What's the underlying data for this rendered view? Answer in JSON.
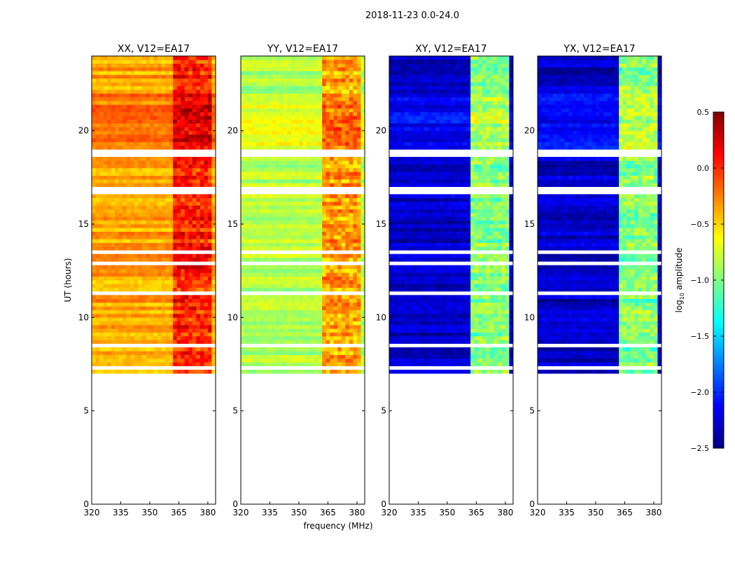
{
  "chart_data": {
    "type": "heatmap",
    "title": "2018-11-23 0.0-24.0",
    "xlabel": "frequency (MHz)",
    "ylabel": "UT (hours)",
    "xlim": [
      320,
      384
    ],
    "ylim": [
      0,
      24
    ],
    "xticks": [
      320,
      335,
      350,
      365,
      380
    ],
    "yticks": [
      0,
      5,
      10,
      15,
      20
    ],
    "colormap": "jet",
    "colorbar": {
      "label": "log10 amplitude",
      "label_main": "log",
      "label_sub": "10",
      "label_rest": " amplitude",
      "range": [
        -2.5,
        0.5
      ],
      "ticks": [
        "0.5",
        "0.0",
        "−0.5",
        "−1.0",
        "−1.5",
        "−2.0",
        "−2.5"
      ],
      "tick_values": [
        0.5,
        0,
        -0.5,
        -1,
        -1.5,
        -2,
        -2.5
      ]
    },
    "data_hours": [
      [
        0,
        0.1
      ],
      [
        7.1,
        24
      ]
    ],
    "flagged_hours": [
      [
        7.25,
        7.35
      ],
      [
        7.6,
        7.7
      ],
      [
        8.5,
        8.7
      ],
      [
        11.1,
        11.3
      ],
      [
        12.5,
        12.6
      ],
      [
        12.85,
        12.95
      ],
      [
        13.3,
        13.5
      ],
      [
        16.5,
        17.0
      ],
      [
        18.6,
        18.9
      ]
    ],
    "panels": [
      {
        "title": "XX, V12=EA17",
        "base": -0.35,
        "band": 0.05,
        "band_range": [
          362,
          382
        ]
      },
      {
        "title": "YY, V12=EA17",
        "base": -0.85,
        "band": -0.35,
        "band_range": [
          362,
          382
        ]
      },
      {
        "title": "XY, V12=EA17",
        "base": -2.3,
        "band": -1.0,
        "band_range": [
          362,
          382
        ]
      },
      {
        "title": "YX, V12=EA17",
        "base": -2.3,
        "band": -1.0,
        "band_range": [
          362,
          382
        ]
      }
    ]
  }
}
